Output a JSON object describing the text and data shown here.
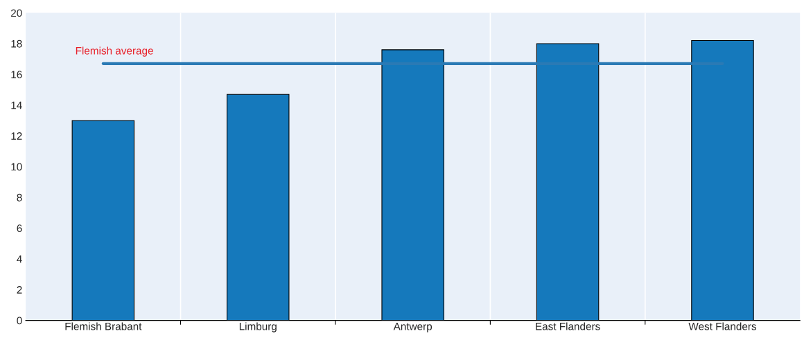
{
  "chart_data": {
    "type": "bar",
    "categories": [
      "Flemish Brabant",
      "Limburg",
      "Antwerp",
      "East Flanders",
      "West Flanders"
    ],
    "series": [
      {
        "color": "#1579bc",
        "values": [
          13.0,
          14.7,
          17.6,
          18.0,
          18.2
        ]
      },
      {
        "type": "line",
        "name": "Flemish average",
        "color": "#2a7ab5",
        "values": [
          16.7,
          16.7,
          16.7,
          16.7,
          16.7
        ]
      }
    ],
    "ylim": [
      0,
      20
    ],
    "yticks": [
      0,
      2,
      4,
      6,
      8,
      10,
      12,
      14,
      16,
      18,
      20
    ],
    "grid": "x",
    "legend": false
  }
}
